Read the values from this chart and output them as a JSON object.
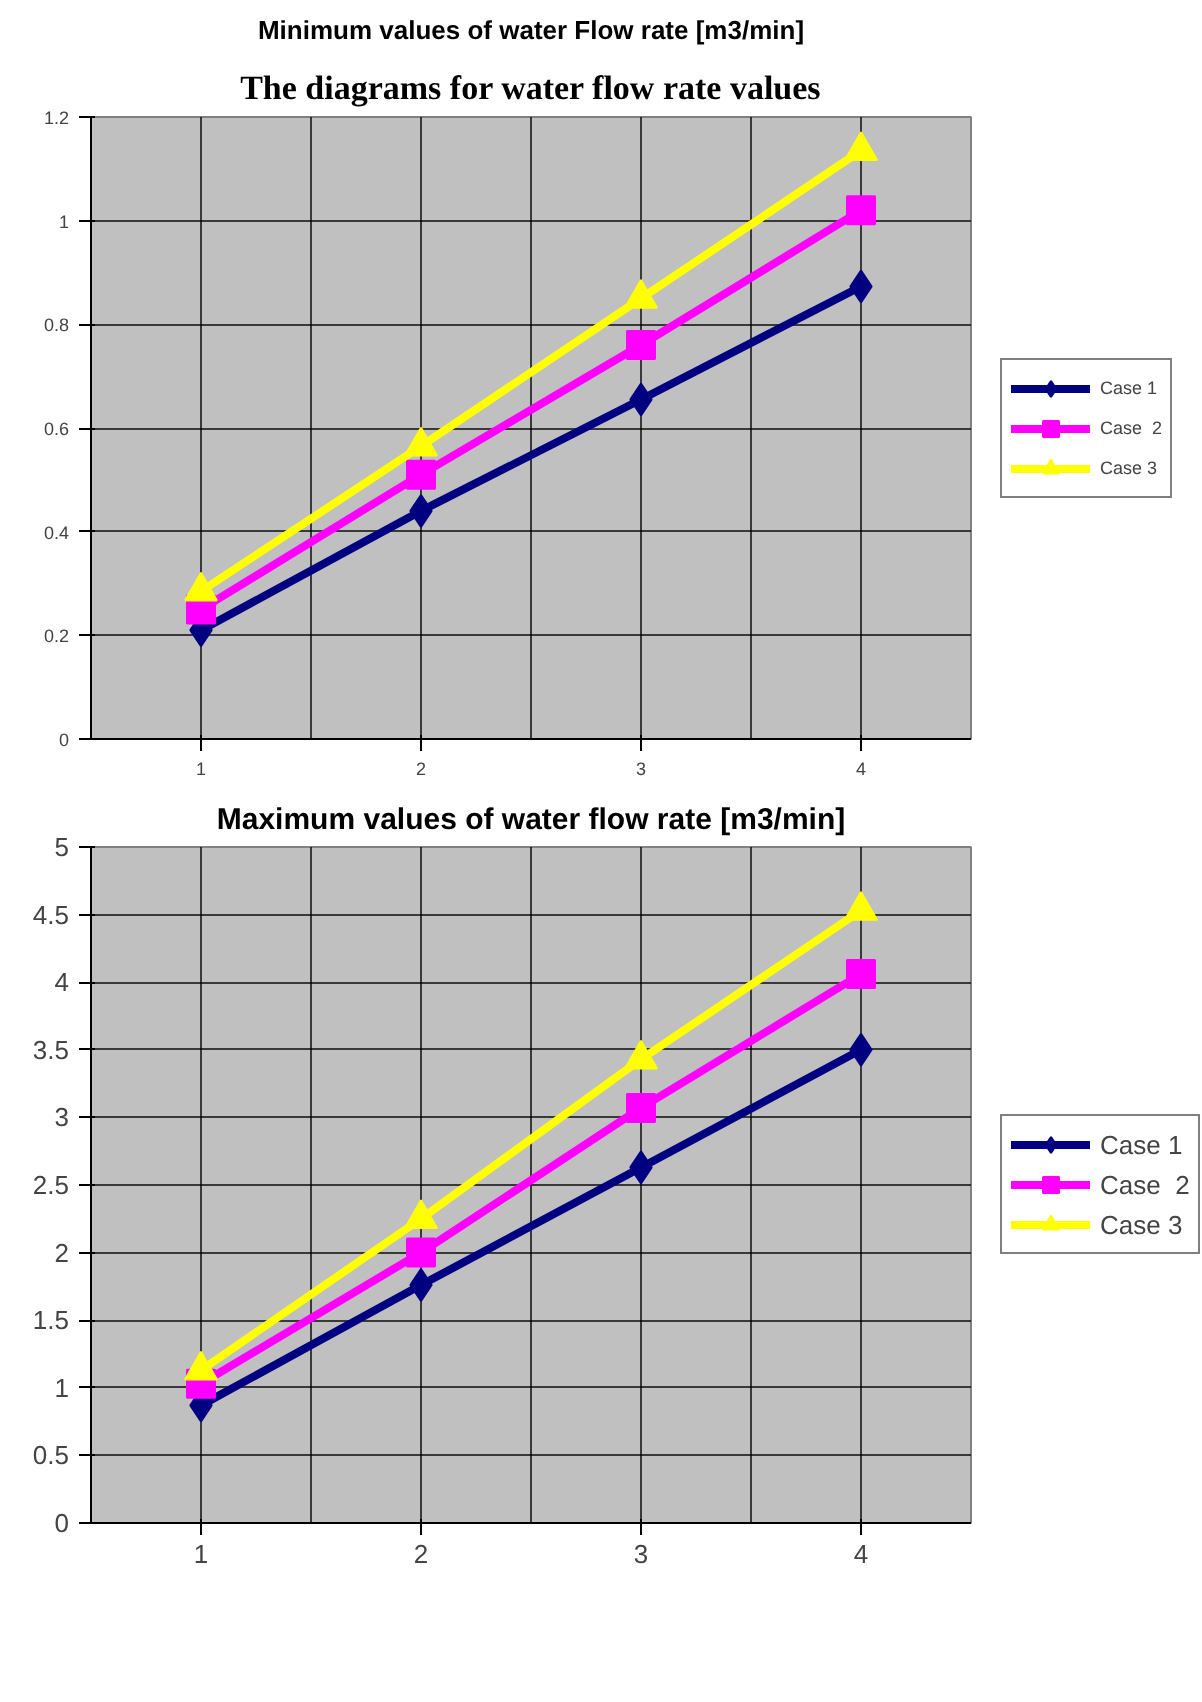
{
  "chart_data": [
    {
      "type": "line",
      "title": "Minimum values of water Flow rate [m3/min]",
      "annotations": [
        "The diagrams for water flow rate values"
      ],
      "categories": [
        "1",
        "2",
        "3",
        "4"
      ],
      "ylim": [
        0,
        1.2
      ],
      "yticks": [
        0,
        0.2,
        0.4,
        0.6,
        0.8,
        1,
        1.2
      ],
      "grid": true,
      "legend": "right",
      "series": [
        {
          "name": "Case 1",
          "color": "#000080",
          "marker": "diamond",
          "values": [
            0.21,
            0.44,
            0.655,
            0.873
          ]
        },
        {
          "name": "Case  2",
          "color": "#ff00ff",
          "marker": "square",
          "values": [
            0.25,
            0.51,
            0.76,
            1.02
          ]
        },
        {
          "name": "Case 3",
          "color": "#ffff00",
          "marker": "triangle",
          "values": [
            0.285,
            0.565,
            0.85,
            1.135
          ]
        }
      ]
    },
    {
      "type": "line",
      "title": "Maximum values of water flow rate [m3/min]",
      "categories": [
        "1",
        "2",
        "3",
        "4"
      ],
      "ylim": [
        0,
        5
      ],
      "yticks": [
        0,
        0.5,
        1,
        1.5,
        2,
        2.5,
        3,
        3.5,
        4,
        4.5,
        5
      ],
      "grid": true,
      "legend": "right",
      "series": [
        {
          "name": "Case 1",
          "color": "#000080",
          "marker": "diamond",
          "values": [
            0.87,
            1.76,
            2.63,
            3.5
          ]
        },
        {
          "name": "Case  2",
          "color": "#ff00ff",
          "marker": "square",
          "values": [
            1.03,
            2.0,
            3.07,
            4.06
          ]
        },
        {
          "name": "Case 3",
          "color": "#ffff00",
          "marker": "triangle",
          "values": [
            1.13,
            2.25,
            3.43,
            4.53
          ]
        }
      ]
    }
  ]
}
